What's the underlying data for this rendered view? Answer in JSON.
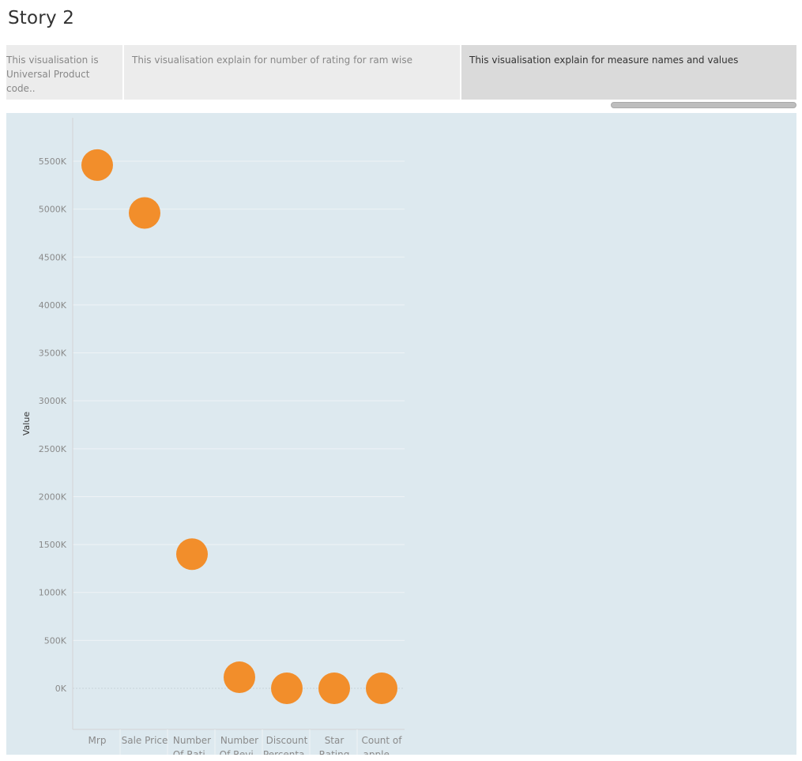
{
  "story": {
    "title": "Story 2",
    "points": [
      {
        "label": "This visualisation is Universal Product code..",
        "selected": false
      },
      {
        "label": "This visualisation explain for number of rating for ram wise",
        "selected": false
      },
      {
        "label": "This visualisation explain for measure names and values",
        "selected": true
      }
    ]
  },
  "colors": {
    "mark": "#f28e2b",
    "panel_bg": "#dde9ef",
    "gridline": "#eef3f6",
    "axis": "#d4d4d4"
  },
  "chart_data": {
    "type": "scatter",
    "title": "",
    "xlabel": "",
    "ylabel": "Value",
    "ylim": [
      -400000,
      5900000
    ],
    "grid": true,
    "categories": [
      "Mrp",
      "Sale Price",
      "Number Of Rati..",
      "Number Of Revi..",
      "Discount Percenta..",
      "Star Rating",
      "Count of apple_.."
    ],
    "category_lines": [
      [
        "Mrp"
      ],
      [
        "Sale Price"
      ],
      [
        "Number",
        "Of Rati.."
      ],
      [
        "Number",
        "Of Revi.."
      ],
      [
        "Discount",
        "Percenta.."
      ],
      [
        "Star",
        "Rating"
      ],
      [
        "Count of",
        "apple_.."
      ]
    ],
    "values": [
      5460000,
      4960000,
      1400000,
      115000,
      0,
      0,
      0
    ],
    "y_ticks": [
      0,
      500000,
      1000000,
      1500000,
      2000000,
      2500000,
      3000000,
      3500000,
      4000000,
      4500000,
      5000000,
      5500000
    ],
    "y_tick_labels": [
      "0K",
      "500K",
      "1000K",
      "1500K",
      "2000K",
      "2500K",
      "3000K",
      "3500K",
      "4000K",
      "4500K",
      "5000K",
      "5500K"
    ]
  }
}
